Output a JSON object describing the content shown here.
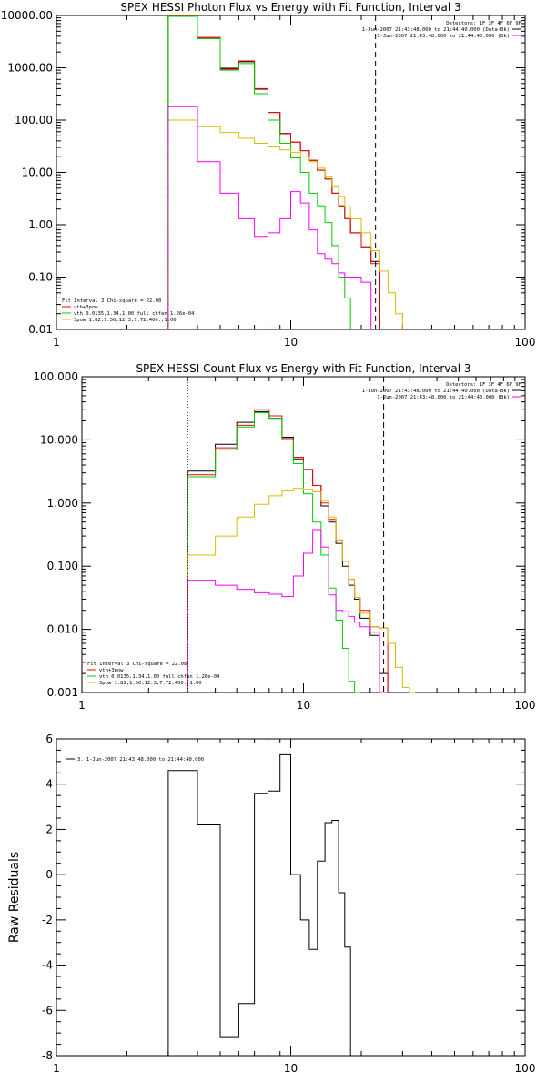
{
  "chart_data": [
    {
      "type": "line",
      "title": "SPEX HESSI Photon Flux vs Energy with Fit Function, Interval 3",
      "xscale": "log",
      "yscale": "log",
      "xlim": [
        1,
        100
      ],
      "ylim": [
        0.01,
        10000
      ],
      "x_ticks": [
        "1",
        "10",
        "100"
      ],
      "y_ticks": [
        "0.01",
        "0.10",
        "1.00",
        "10.00",
        "100.00",
        "1000.00",
        "10000.00"
      ],
      "legend_tr": {
        "header": "Detectors: 1F 3F 4F 6F 9F",
        "lines": [
          {
            "text": "1-Jun-2007 21:43:48.000 to 21:44:40.000 (Data-Bk)",
            "color": "#000000"
          },
          {
            "text": "1-Jun-2007 21:43:48.000 to 21:44:40.000 (Bk)",
            "color": "#ff00ff"
          }
        ]
      },
      "legend_bl": {
        "header": "Fit Interval 3   Chi-square = 22.08",
        "lines": [
          {
            "text": "vth+3pow",
            "color": "#ff0000"
          },
          {
            "text": "vth 0.0135,1.34,1.00  full chfan 1.26e-04",
            "color": "#00cc00"
          },
          {
            "text": "3pow 1.82,1.50,12.3,7.72,400.,1.00",
            "color": "#ddbb00"
          }
        ]
      },
      "vlines": [
        {
          "x": 3,
          "color": "#00cc00",
          "style": "dotted"
        },
        {
          "x": 23,
          "color": "#000000",
          "style": "dashed"
        }
      ],
      "edges": [
        3,
        4,
        5,
        6,
        7,
        8,
        9,
        10,
        11,
        12,
        13,
        14,
        15,
        16,
        17,
        18,
        20,
        22,
        24,
        26,
        28,
        30,
        32
      ],
      "series": [
        {
          "name": "Data-Bk",
          "color": "#000000",
          "values": [
            9800,
            3800,
            980,
            1300,
            390,
            140,
            55,
            38,
            26,
            17,
            11,
            7.5,
            4,
            2.3,
            1.3,
            0.7,
            0.38,
            0.2,
            null,
            null,
            null,
            null
          ]
        },
        {
          "name": "vth+3pow",
          "color": "#ff0000",
          "values": [
            9800,
            3800,
            940,
            1350,
            400,
            140,
            56,
            38,
            26,
            17,
            11,
            7.5,
            4,
            2.3,
            1.3,
            0.7,
            0.38,
            0.18,
            null,
            null,
            null,
            null
          ]
        },
        {
          "name": "vth",
          "color": "#00cc00",
          "values": [
            9600,
            3600,
            900,
            1200,
            320,
            100,
            36,
            19,
            10,
            4,
            2.3,
            1.1,
            0.4,
            0.1,
            0.04,
            0.01,
            null,
            null,
            null,
            null,
            null,
            null
          ]
        },
        {
          "name": "3pow",
          "color": "#ddbb00",
          "values": [
            100,
            75,
            58,
            45,
            36,
            32,
            27,
            24,
            20,
            16,
            12,
            8.5,
            5.5,
            3.5,
            2.2,
            1.3,
            0.7,
            0.32,
            0.13,
            0.05,
            0.02,
            0.01
          ]
        },
        {
          "name": "Bk",
          "color": "#ff00ff",
          "values": [
            180,
            16,
            4,
            1.3,
            0.6,
            0.7,
            1.3,
            4.3,
            2.6,
            0.8,
            0.28,
            0.22,
            0.18,
            0.12,
            0.1,
            0.1,
            0.08,
            0.01,
            null,
            null,
            null,
            null
          ]
        }
      ]
    },
    {
      "type": "line",
      "title": "SPEX HESSI Count Flux vs Energy with Fit Function, Interval 3",
      "xscale": "log",
      "yscale": "log",
      "xlim": [
        1,
        100
      ],
      "ylim": [
        0.001,
        100
      ],
      "x_ticks": [
        "1",
        "10",
        "100"
      ],
      "y_ticks": [
        "0.001",
        "0.010",
        "0.100",
        "1.000",
        "10.000",
        "100.000"
      ],
      "legend_tr": {
        "header": "Detectors: 1F 3F 4F 6F 9F",
        "lines": [
          {
            "text": "1-Jun-2007 21:43:48.000 to 21:44:40.000 (Data-Bk)",
            "color": "#000000"
          },
          {
            "text": "1-Jun-2007 21:43:48.000 to 21:44:40.000 (Bk)",
            "color": "#ff00ff"
          }
        ]
      },
      "legend_bl": {
        "header": "Fit Interval 3   Chi-square = 22.08",
        "lines": [
          {
            "text": "vth+3pow",
            "color": "#ff0000"
          },
          {
            "text": "vth 0.0135,1.34,1.00  full chfan 1.26e-04",
            "color": "#00cc00"
          },
          {
            "text": "3pow 1.82,1.50,12.3,7.72,400.,1.00",
            "color": "#ddbb00"
          }
        ]
      },
      "vlines": [
        {
          "x": 3,
          "color": "#000000",
          "style": "dotted"
        },
        {
          "x": 23,
          "color": "#000000",
          "style": "dashed"
        }
      ],
      "edges": [
        3,
        4,
        5,
        6,
        7,
        8,
        9,
        10,
        11,
        12,
        13,
        14,
        15,
        16,
        17,
        18,
        20,
        22,
        24,
        26,
        28,
        30,
        32,
        34
      ],
      "series": [
        {
          "name": "Data-Bk",
          "color": "#000000",
          "values": [
            3.2,
            8.5,
            19,
            28,
            22,
            11,
            5,
            3.4,
            1.9,
            0.9,
            0.5,
            0.23,
            0.1,
            0.05,
            0.03,
            0.015,
            0.008,
            0.002,
            null,
            null,
            null,
            null,
            null
          ]
        },
        {
          "name": "vth+3pow",
          "color": "#ff0000",
          "values": [
            2.8,
            7.5,
            17,
            30,
            24,
            10.5,
            5.3,
            3.4,
            1.9,
            1,
            0.55,
            0.26,
            0.12,
            0.062,
            0.032,
            0.02,
            0.011,
            0.0105,
            null,
            null,
            null,
            null,
            null
          ]
        },
        {
          "name": "vth",
          "color": "#00cc00",
          "values": [
            2.6,
            7,
            16,
            27,
            22,
            10,
            4.2,
            1.4,
            0.5,
            0.15,
            0.045,
            0.014,
            0.005,
            0.0015,
            0.001,
            null,
            null,
            null,
            null,
            null,
            null,
            null,
            null
          ]
        },
        {
          "name": "3pow",
          "color": "#ddbb00",
          "values": [
            0.15,
            0.3,
            0.6,
            0.95,
            1.3,
            1.55,
            1.7,
            1.65,
            1.5,
            1.1,
            0.6,
            0.26,
            0.12,
            0.062,
            0.032,
            0.018,
            0.011,
            0.0105,
            0.006,
            0.0025,
            0.0012,
            0.001,
            null
          ]
        },
        {
          "name": "Bk",
          "color": "#ff00ff",
          "values": [
            0.06,
            0.05,
            0.043,
            0.038,
            0.036,
            0.033,
            0.07,
            0.16,
            0.38,
            0.2,
            0.035,
            0.02,
            0.019,
            0.016,
            0.013,
            0.011,
            0.009,
            0.001,
            null,
            null,
            null,
            null,
            null
          ]
        }
      ]
    },
    {
      "type": "line",
      "title": "",
      "ylabel": "Raw Residuals",
      "xscale": "log",
      "yscale": "linear",
      "xlim": [
        1,
        100
      ],
      "ylim": [
        -8,
        6
      ],
      "x_ticks": [
        "1",
        "10",
        "100"
      ],
      "y_ticks": [
        "-8",
        "-6",
        "-4",
        "-2",
        "0",
        "2",
        "4",
        "6"
      ],
      "legend_tl": {
        "lines": [
          {
            "text": "3.  1-Jun-2007 21:43:48.000 to 21:44:40.000",
            "color": "#000000"
          }
        ]
      },
      "edges": [
        3,
        4,
        5,
        6,
        7,
        8,
        9,
        10,
        11,
        12,
        13,
        14,
        15,
        16,
        17,
        18,
        20,
        22
      ],
      "series": [
        {
          "name": "",
          "color": "#000000",
          "values": [
            4.6,
            2.2,
            -7.2,
            -5.7,
            3.6,
            3.7,
            5.3,
            0,
            -2,
            -3.3,
            0.6,
            2.3,
            2.4,
            -0.8,
            -3.2,
            -8,
            -8
          ]
        }
      ]
    }
  ]
}
